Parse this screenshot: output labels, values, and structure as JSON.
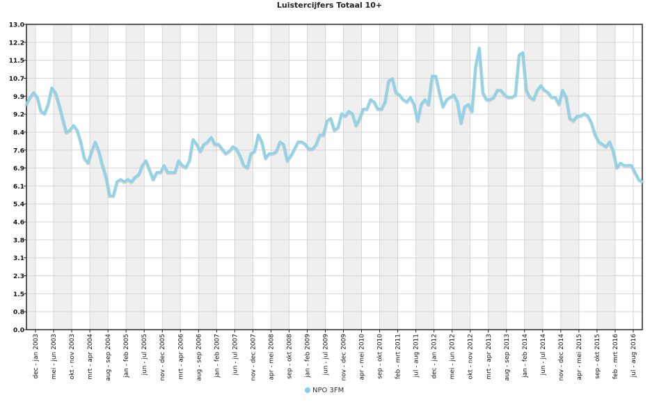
{
  "colors": {
    "line": "#8fd3e8",
    "line_shadow": "#9aa6ac",
    "band": "#efefef",
    "grid": "#d6d6d6",
    "axis": "#222222"
  },
  "chart_data": {
    "type": "line",
    "title": "Luistercijfers Totaal 10+",
    "xlabel": "",
    "ylabel": "",
    "ylim": [
      0,
      13.0
    ],
    "y_ticks": [
      "0.0",
      "0.8",
      "1.5",
      "2.3",
      "3.1",
      "3.8",
      "4.6",
      "5.4",
      "6.1",
      "6.9",
      "7.6",
      "8.4",
      "9.2",
      "9.9",
      "10.7",
      "11.5",
      "12.2",
      "13.0"
    ],
    "x_tick_labels": [
      "dec - jan 2003",
      "mei - jun 2003",
      "okt - nov 2003",
      "mrt - apr 2004",
      "aug - sep 2004",
      "jan - feb 2005",
      "jun - jul 2005",
      "nov - dec 2005",
      "mrt - apr 2006",
      "aug - sep 2006",
      "jan - feb 2007",
      "jun - jul 2007",
      "nov - dec 2007",
      "apr - mei 2008",
      "sep - okt 2008",
      "jan - feb 2009",
      "jun - jul 2009",
      "nov - dec 2009",
      "apr - mei 2010",
      "sep - okt 2010",
      "feb - mrt 2011",
      "jul - aug 2011",
      "dec - jan 2012",
      "mei - jun 2012",
      "okt - nov 2012",
      "mrt - apr 2013",
      "aug - sep 2013",
      "jan - feb 2014",
      "jun - jul 2014",
      "nov - dec 2014",
      "apr - mei 2015",
      "sep - okt 2015",
      "feb - mrt 2016",
      "jul - aug 2016"
    ],
    "grid": true,
    "alternating_bands": true,
    "legend_position": "bottom-center",
    "series": [
      {
        "name": "NPO 3FM",
        "values": [
          9.6,
          9.9,
          10.1,
          9.9,
          9.3,
          9.2,
          9.6,
          10.3,
          10.1,
          9.6,
          9.0,
          8.4,
          8.5,
          8.7,
          8.5,
          8.0,
          7.3,
          7.1,
          7.6,
          8.0,
          7.6,
          7.0,
          6.5,
          5.7,
          5.7,
          6.3,
          6.4,
          6.3,
          6.4,
          6.3,
          6.5,
          6.6,
          7.0,
          7.2,
          6.8,
          6.4,
          6.7,
          6.7,
          7.0,
          6.7,
          6.7,
          6.7,
          7.2,
          7.0,
          6.9,
          7.2,
          8.1,
          7.9,
          7.6,
          7.9,
          8.0,
          8.2,
          7.9,
          7.9,
          7.7,
          7.5,
          7.6,
          7.8,
          7.7,
          7.4,
          7.0,
          6.9,
          7.5,
          7.6,
          8.3,
          8.0,
          7.3,
          7.5,
          7.5,
          7.6,
          8.0,
          7.9,
          7.2,
          7.4,
          7.7,
          8.0,
          8.0,
          7.9,
          7.7,
          7.7,
          7.9,
          8.3,
          8.3,
          8.9,
          9.0,
          8.5,
          8.6,
          9.2,
          9.1,
          9.3,
          9.2,
          8.7,
          9.0,
          9.4,
          9.4,
          9.8,
          9.7,
          9.4,
          9.4,
          9.7,
          10.6,
          10.7,
          10.1,
          10.0,
          9.8,
          9.7,
          9.9,
          9.6,
          8.9,
          9.6,
          9.8,
          9.6,
          10.8,
          10.8,
          10.1,
          9.5,
          9.8,
          9.9,
          10.0,
          9.7,
          8.8,
          9.5,
          9.6,
          9.3,
          11.2,
          12.0,
          10.1,
          9.8,
          9.8,
          9.9,
          10.2,
          10.2,
          10.0,
          9.9,
          9.9,
          10.0,
          11.7,
          11.8,
          10.2,
          9.9,
          9.8,
          10.2,
          10.4,
          10.2,
          10.1,
          9.9,
          9.9,
          9.6,
          10.2,
          9.9,
          9.0,
          8.9,
          9.1,
          9.1,
          9.2,
          9.1,
          8.8,
          8.3,
          8.0,
          7.9,
          7.8,
          8.0,
          7.6,
          6.9,
          7.1,
          7.0,
          7.0,
          7.0,
          6.7,
          6.4,
          6.3
        ]
      }
    ]
  }
}
